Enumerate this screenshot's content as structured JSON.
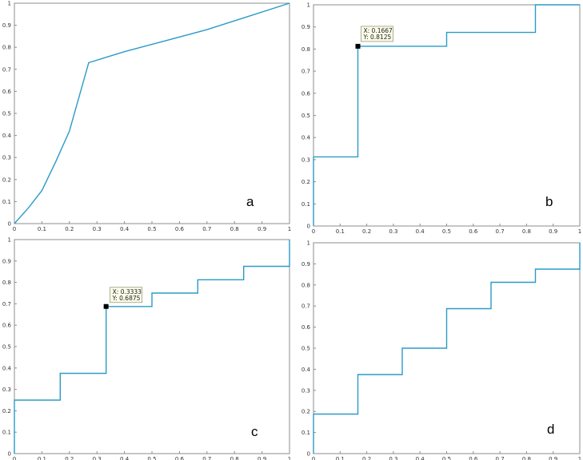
{
  "figure": {
    "line_color": "#2a9bc7"
  },
  "chart_data": [
    {
      "type": "line",
      "panel_letter": "a",
      "x": [
        0,
        0.05,
        0.1,
        0.15,
        0.2,
        0.27,
        0.4,
        0.55,
        0.7,
        0.85,
        1.0
      ],
      "y": [
        0,
        0.07,
        0.15,
        0.28,
        0.42,
        0.73,
        0.78,
        0.83,
        0.88,
        0.94,
        1.0
      ],
      "xlim": [
        0,
        1
      ],
      "ylim": [
        0,
        1
      ],
      "xticks": [
        "0",
        "0.1",
        "0.2",
        "0.3",
        "0.4",
        "0.5",
        "0.6",
        "0.7",
        "0.8",
        "0.9",
        "1"
      ],
      "yticks": [
        "0",
        "0.1",
        "0.2",
        "0.3",
        "0.4",
        "0.5",
        "0.6",
        "0.7",
        "0.8",
        "0.9",
        "1"
      ],
      "datatip": null
    },
    {
      "type": "line",
      "panel_letter": "b",
      "x": [
        0,
        0,
        0.1667,
        0.1667,
        0.5,
        0.5,
        0.8333,
        0.8333,
        1.0
      ],
      "y": [
        0,
        0.3125,
        0.3125,
        0.8125,
        0.8125,
        0.875,
        0.875,
        1.0,
        1.0
      ],
      "xlim": [
        0,
        1
      ],
      "ylim": [
        0,
        1
      ],
      "xticks": [
        "0",
        "0.1",
        "0.2",
        "0.3",
        "0.4",
        "0.5",
        "0.6",
        "0.7",
        "0.8",
        "0.9",
        "1"
      ],
      "yticks": [
        "0",
        "0.1",
        "0.2",
        "0.3",
        "0.4",
        "0.5",
        "0.6",
        "0.7",
        "0.8",
        "0.9",
        "1"
      ],
      "datatip": {
        "x": 0.1667,
        "y": 0.8125,
        "x_label": "X: 0.1667",
        "y_label": "Y: 0.8125"
      }
    },
    {
      "type": "line",
      "panel_letter": "c",
      "x": [
        0,
        0,
        0.1667,
        0.1667,
        0.3333,
        0.3333,
        0.5,
        0.5,
        0.6667,
        0.6667,
        0.8333,
        0.8333,
        1.0,
        1.0
      ],
      "y": [
        0,
        0.25,
        0.25,
        0.375,
        0.375,
        0.6875,
        0.6875,
        0.75,
        0.75,
        0.8125,
        0.8125,
        0.875,
        0.875,
        1.0
      ],
      "xlim": [
        0,
        1
      ],
      "ylim": [
        0,
        1
      ],
      "xticks": [
        "0",
        "0.1",
        "0.2",
        "0.3",
        "0.4",
        "0.5",
        "0.6",
        "0.7",
        "0.8",
        "0.9",
        "1"
      ],
      "yticks": [
        "0",
        "0.1",
        "0.2",
        "0.3",
        "0.4",
        "0.5",
        "0.6",
        "0.7",
        "0.8",
        "0.9",
        "1"
      ],
      "datatip": {
        "x": 0.3333,
        "y": 0.6875,
        "x_label": "X: 0.3333",
        "y_label": "Y: 0.6875"
      }
    },
    {
      "type": "line",
      "panel_letter": "d",
      "x": [
        0,
        0,
        0.1667,
        0.1667,
        0.3333,
        0.3333,
        0.5,
        0.5,
        0.6667,
        0.6667,
        0.8333,
        0.8333,
        1.0,
        1.0
      ],
      "y": [
        0,
        0.1875,
        0.1875,
        0.375,
        0.375,
        0.5,
        0.5,
        0.6875,
        0.6875,
        0.8125,
        0.8125,
        0.875,
        0.875,
        1.0
      ],
      "xlim": [
        0,
        1
      ],
      "ylim": [
        0,
        1
      ],
      "xticks": [
        "0",
        "0.1",
        "0.2",
        "0.3",
        "0.4",
        "0.5",
        "0.6",
        "0.7",
        "0.8",
        "0.9",
        "1"
      ],
      "yticks": [
        "0",
        "0.1",
        "0.2",
        "0.3",
        "0.4",
        "0.5",
        "0.6",
        "0.7",
        "0.8",
        "0.9",
        "1"
      ],
      "datatip": null
    }
  ]
}
